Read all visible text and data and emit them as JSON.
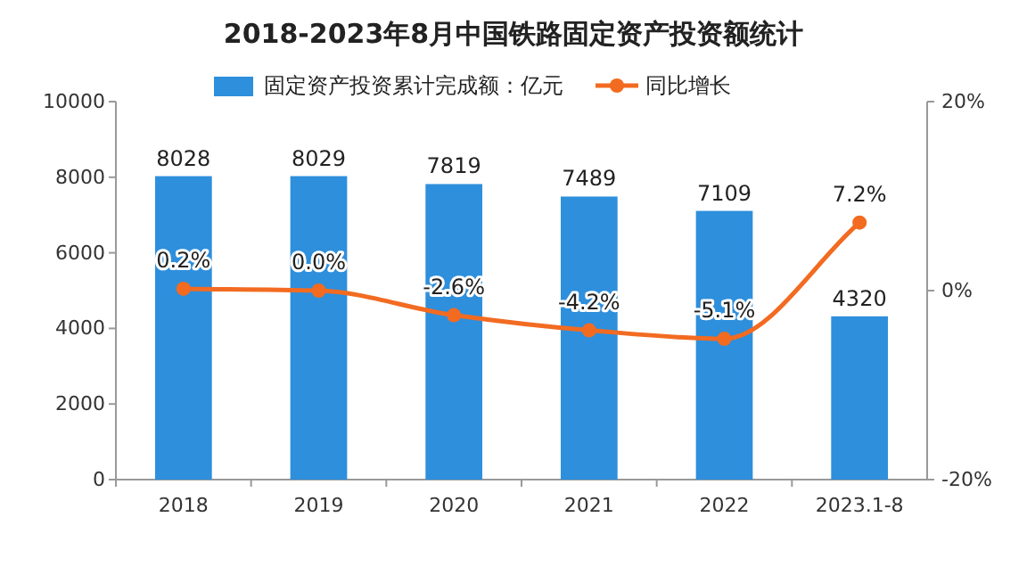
{
  "chart_data": {
    "type": "bar",
    "title": "2018-2023年8月中国铁路固定资产投资额统计",
    "categories": [
      "2018",
      "2019",
      "2020",
      "2021",
      "2022",
      "2023.1-8"
    ],
    "series": [
      {
        "name": "固定资产投资累计完成额：亿元",
        "color": "#2e8fdc",
        "values": [
          8028,
          8029,
          7819,
          7489,
          7109,
          4320
        ],
        "value_labels": [
          "8028",
          "8029",
          "7819",
          "7489",
          "7109",
          "4320"
        ]
      },
      {
        "name": "同比增长",
        "type": "line",
        "axis": "y2",
        "color": "#f26b21",
        "marker": "circle",
        "values": [
          0.2,
          0.0,
          -2.6,
          -4.2,
          -5.1,
          7.2
        ],
        "value_labels": [
          "0.2%",
          "0.0%",
          "-2.6%",
          "-4.2%",
          "-5.1%",
          "7.2%"
        ]
      }
    ],
    "ylim": [
      0,
      10000
    ],
    "yticks": [
      0,
      2000,
      4000,
      6000,
      8000,
      10000
    ],
    "y2lim": [
      -20,
      20
    ],
    "y2ticks": [
      {
        "value": -20,
        "label": "-20%"
      },
      {
        "value": 0,
        "label": "0%"
      },
      {
        "value": 20,
        "label": "20%"
      }
    ],
    "grid": false,
    "legend": "top"
  }
}
